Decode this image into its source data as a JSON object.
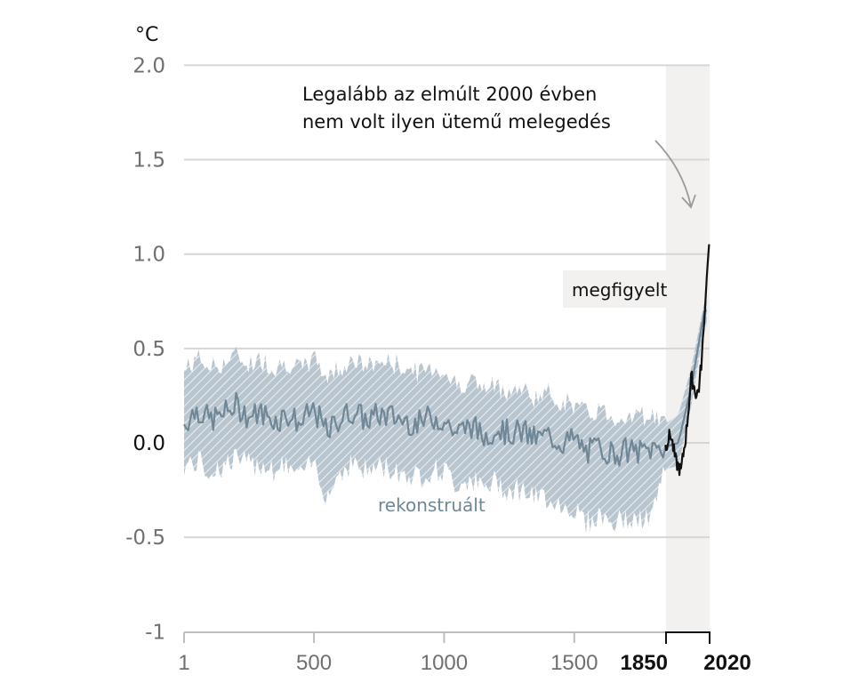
{
  "chart_data": {
    "type": "line",
    "title": "",
    "unit_label": "°C",
    "xlabel": "",
    "ylabel": "°C",
    "ylim": [
      -1,
      2
    ],
    "xlim": [
      1,
      2020
    ],
    "y_ticks": [
      "2.0",
      "1.5",
      "1.0",
      "0.5",
      "0.0",
      "-0.5",
      "-1"
    ],
    "x_ticks": [
      "1",
      "500",
      "1000",
      "1500",
      "1850",
      "2020"
    ],
    "x_ticks_bold": [
      "1850",
      "2020"
    ],
    "grid": true,
    "highlight_region": {
      "from": 1850,
      "to": 2020,
      "color": "#f2f1f0"
    },
    "annotation": {
      "line1": "Legalább az elmúlt 2000 évben",
      "line2": "nem volt ilyen ütemű melegedés"
    },
    "series": [
      {
        "name": "rekonstruált",
        "color": "#6f8796",
        "band_color": "#b8c4ce",
        "x": [
          1,
          50,
          100,
          150,
          200,
          250,
          300,
          350,
          400,
          450,
          500,
          550,
          600,
          650,
          700,
          750,
          800,
          850,
          900,
          950,
          1000,
          1050,
          1100,
          1150,
          1200,
          1250,
          1300,
          1350,
          1400,
          1450,
          1500,
          1550,
          1600,
          1650,
          1700,
          1750,
          1800,
          1850,
          1900,
          1950,
          2000
        ],
        "values": [
          0.1,
          0.18,
          0.12,
          0.15,
          0.2,
          0.14,
          0.16,
          0.12,
          0.15,
          0.1,
          0.18,
          0.05,
          0.13,
          0.17,
          0.12,
          0.15,
          0.14,
          0.12,
          0.1,
          0.14,
          0.12,
          0.05,
          0.1,
          0.03,
          0.08,
          0.05,
          0.06,
          0.02,
          0.04,
          0.0,
          0.02,
          -0.05,
          -0.02,
          -0.06,
          -0.04,
          -0.05,
          -0.03,
          -0.02,
          0.0,
          0.3,
          0.7
        ],
        "upper": [
          0.38,
          0.45,
          0.4,
          0.42,
          0.46,
          0.42,
          0.44,
          0.4,
          0.43,
          0.38,
          0.45,
          0.35,
          0.4,
          0.44,
          0.4,
          0.43,
          0.42,
          0.4,
          0.37,
          0.4,
          0.38,
          0.3,
          0.34,
          0.28,
          0.3,
          0.28,
          0.28,
          0.24,
          0.26,
          0.22,
          0.2,
          0.15,
          0.18,
          0.13,
          0.15,
          0.14,
          0.15,
          0.1,
          0.15,
          0.4,
          0.75
        ],
        "lower": [
          -0.12,
          -0.1,
          -0.15,
          -0.12,
          -0.08,
          -0.12,
          -0.1,
          -0.14,
          -0.12,
          -0.18,
          -0.1,
          -0.28,
          -0.15,
          -0.1,
          -0.15,
          -0.12,
          -0.14,
          -0.16,
          -0.18,
          -0.14,
          -0.15,
          -0.22,
          -0.18,
          -0.25,
          -0.2,
          -0.25,
          -0.24,
          -0.3,
          -0.28,
          -0.33,
          -0.35,
          -0.42,
          -0.38,
          -0.43,
          -0.4,
          -0.42,
          -0.38,
          -0.14,
          -0.12,
          0.2,
          0.62
        ]
      },
      {
        "name": "megfigyelt",
        "color": "#111111",
        "x": [
          1850,
          1870,
          1890,
          1910,
          1930,
          1950,
          1970,
          1980,
          1990,
          2000,
          2010,
          2020
        ],
        "values": [
          -0.02,
          0.05,
          -0.1,
          -0.15,
          0.05,
          0.35,
          0.25,
          0.3,
          0.45,
          0.65,
          0.9,
          1.09
        ]
      }
    ]
  }
}
